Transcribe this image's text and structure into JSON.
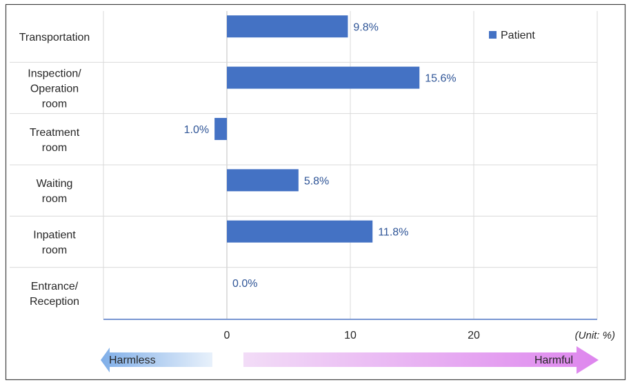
{
  "chart_data": {
    "type": "bar",
    "orientation": "horizontal",
    "categories": [
      [
        "Transportation"
      ],
      [
        "Inspection/",
        "Operation",
        "room"
      ],
      [
        "Treatment",
        "room"
      ],
      [
        "Waiting",
        "room"
      ],
      [
        "Inpatient",
        "room"
      ],
      [
        "Entrance/",
        "Reception"
      ]
    ],
    "series": [
      {
        "name": "Patient",
        "color": "#4472c4",
        "values": [
          9.8,
          15.6,
          -1.0,
          5.8,
          11.8,
          0.0
        ],
        "labels": [
          "9.8%",
          "15.6%",
          "1.0%",
          "5.8%",
          "11.8%",
          "0.0%"
        ]
      }
    ],
    "xlim": [
      -10,
      30
    ],
    "xticks": [
      0,
      10,
      20
    ],
    "grid": true,
    "legend": "top-right",
    "unit_note": "(Unit: %)",
    "arrows": {
      "left_label": "Harmless",
      "right_label": "Harmful"
    }
  }
}
